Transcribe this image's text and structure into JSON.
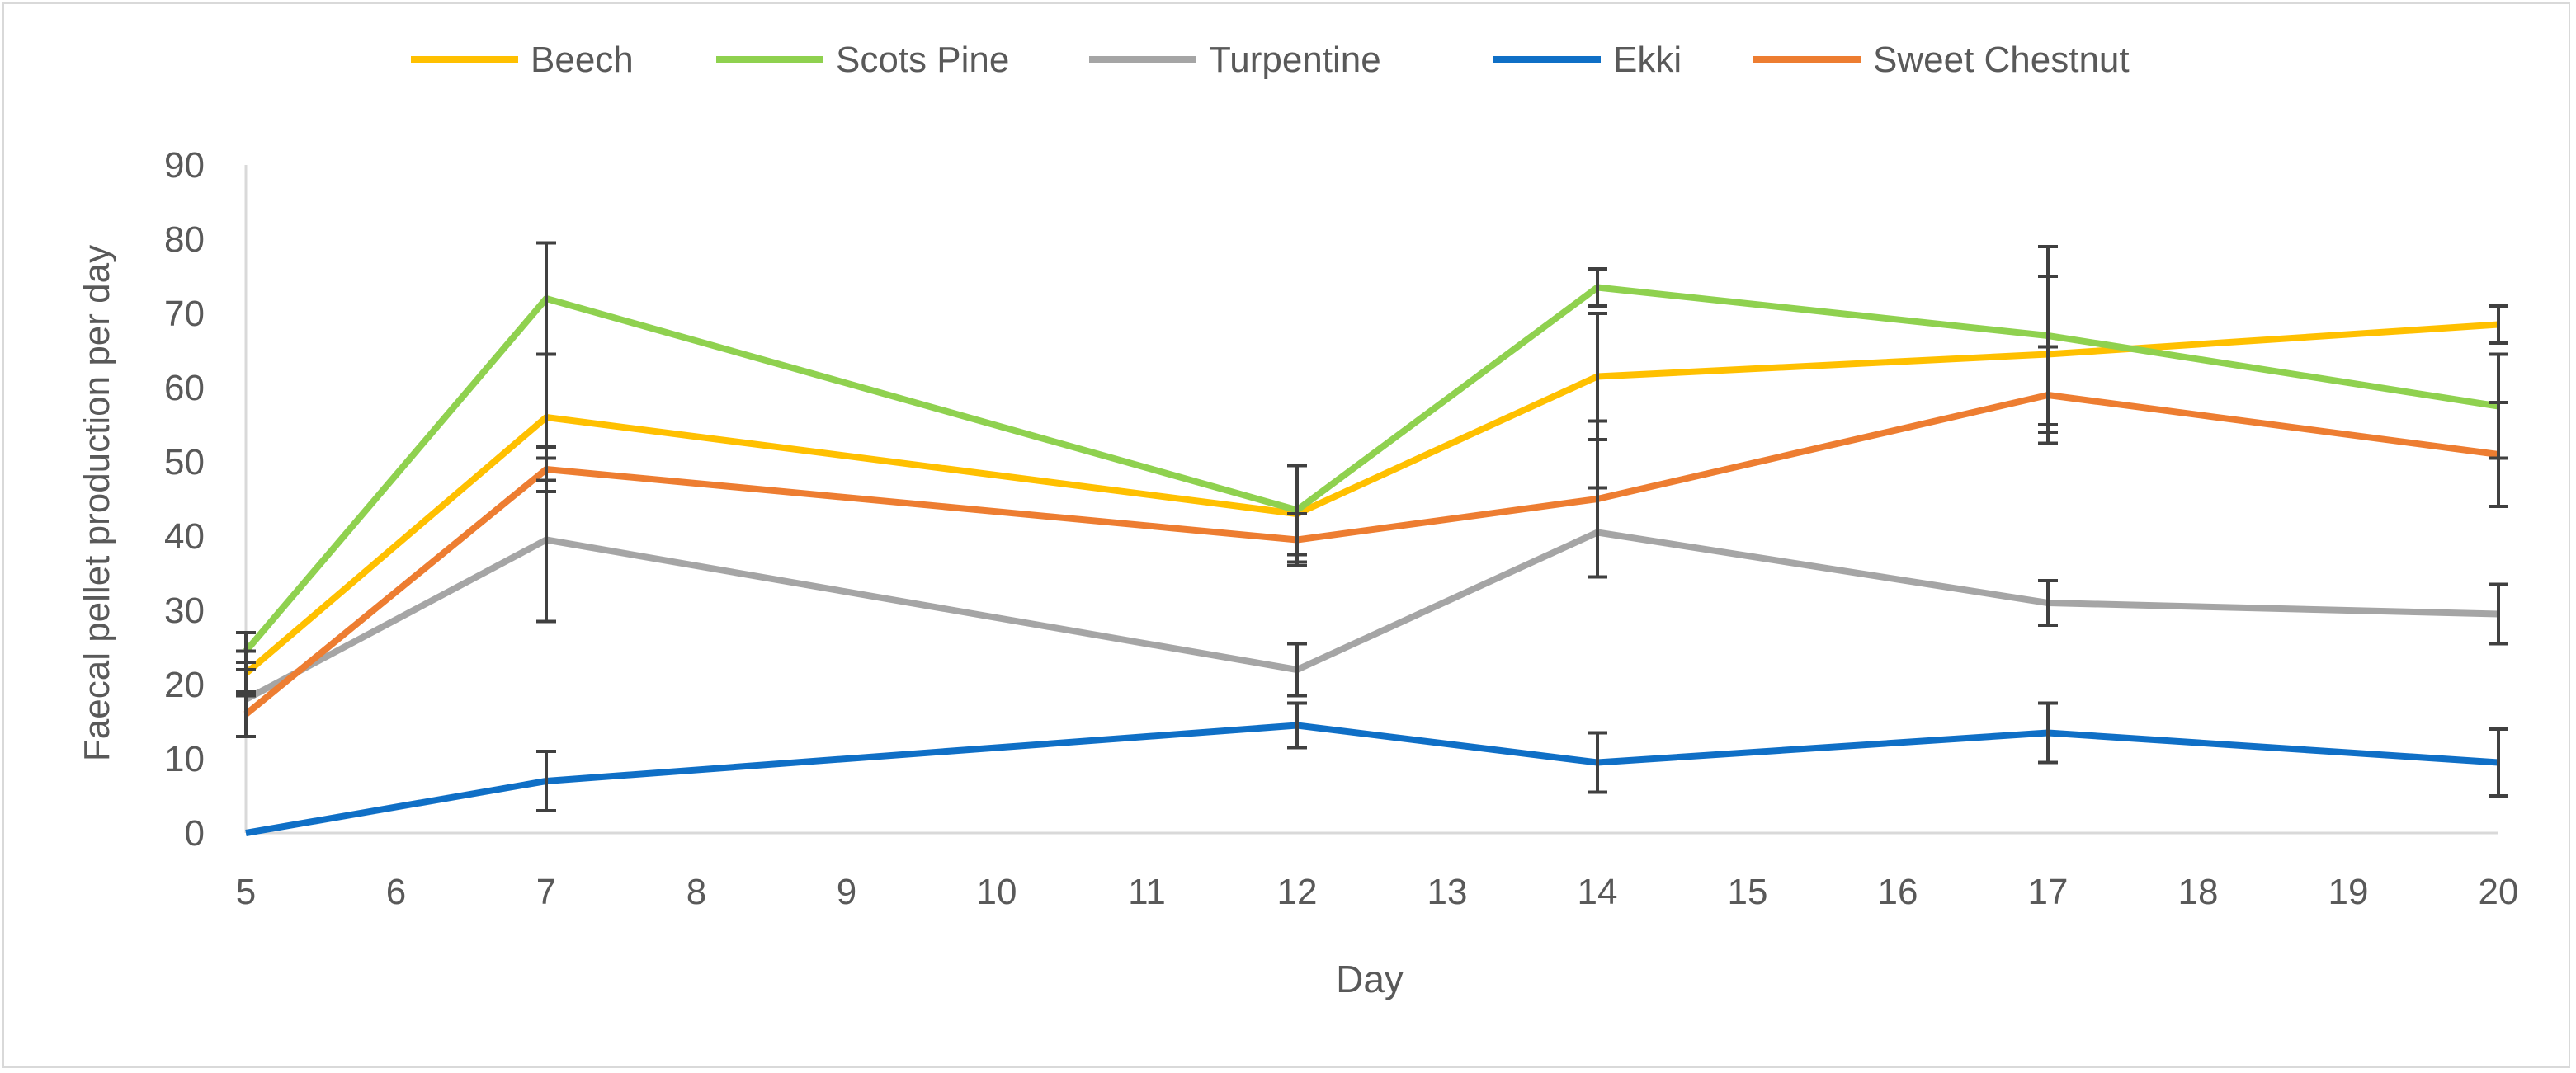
{
  "chart_data": {
    "type": "line",
    "title": "",
    "xlabel": "Day",
    "ylabel": "Faecal pellet production per day",
    "xlim": [
      5,
      20
    ],
    "ylim": [
      0,
      90
    ],
    "x_ticks": [
      5,
      6,
      7,
      8,
      9,
      10,
      11,
      12,
      13,
      14,
      15,
      16,
      17,
      18,
      19,
      20
    ],
    "y_ticks": [
      0,
      10,
      20,
      30,
      40,
      50,
      60,
      70,
      80,
      90
    ],
    "grid": false,
    "legend_position": "top-center",
    "x": [
      5,
      7,
      12,
      14,
      17,
      20
    ],
    "series": [
      {
        "name": "Beech",
        "color": "#FFC000",
        "values": [
          21.5,
          56,
          43,
          61.5,
          64.5,
          68.5
        ],
        "errors": [
          3,
          8.5,
          6.5,
          8.5,
          10.5,
          2.5
        ]
      },
      {
        "name": "Scots Pine",
        "color": "#8FD14F",
        "values": [
          24.5,
          72,
          43.5,
          73.5,
          67,
          57.5
        ],
        "errors": [
          2.5,
          7.5,
          6,
          2.5,
          12,
          7
        ]
      },
      {
        "name": "Turpentine",
        "color": "#A5A5A5",
        "values": [
          18,
          39.5,
          22,
          40.5,
          31,
          29.5
        ],
        "errors": [
          5,
          11,
          3.5,
          6,
          3,
          4
        ]
      },
      {
        "name": "Ekki",
        "color": "#0F6FC6",
        "values": [
          0,
          7,
          14.5,
          9.5,
          13.5,
          9.5
        ],
        "errors": [
          0,
          4,
          3,
          4,
          4,
          4.5
        ]
      },
      {
        "name": "Sweet Chestnut",
        "color": "#ED7D31",
        "values": [
          16,
          49,
          39.5,
          45,
          59,
          51
        ],
        "errors": [
          3,
          3,
          3.5,
          10.5,
          6.5,
          7
        ]
      }
    ]
  }
}
